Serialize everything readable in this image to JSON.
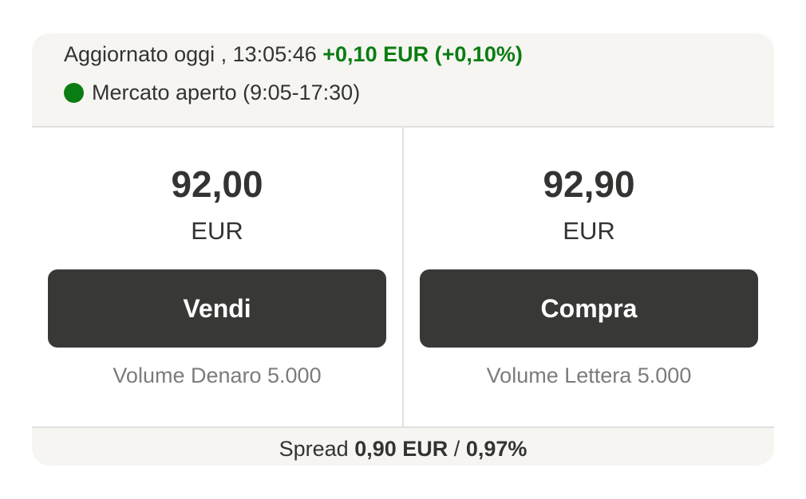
{
  "header": {
    "updated_label": "Aggiornato oggi , 13:05:46",
    "change": "+0,10 EUR (+0,10%)",
    "market_status": "Mercato aperto (9:05-17:30)",
    "status_color": "#0a7d12"
  },
  "sell": {
    "price": "92,00",
    "currency": "EUR",
    "button": "Vendi",
    "volume": "Volume Denaro 5.000"
  },
  "buy": {
    "price": "92,90",
    "currency": "EUR",
    "button": "Compra",
    "volume": "Volume Lettera 5.000"
  },
  "footer": {
    "label": "Spread",
    "value_eur": "0,90 EUR",
    "separator": "/",
    "value_pct": "0,97%"
  }
}
